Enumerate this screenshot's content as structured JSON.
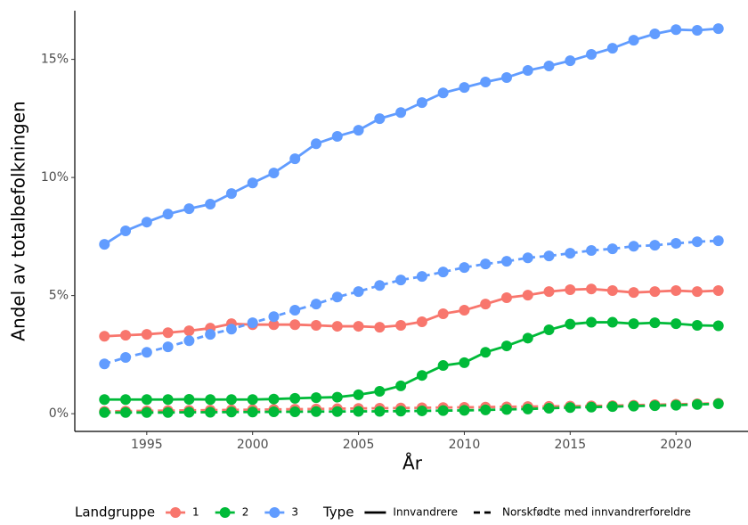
{
  "chart_data": {
    "type": "line",
    "x_label": "År",
    "y_label": "Andel av totalbefolkningen",
    "x": [
      1993,
      1994,
      1995,
      1996,
      1997,
      1998,
      1999,
      2000,
      2001,
      2002,
      2003,
      2004,
      2005,
      2006,
      2007,
      2008,
      2009,
      2010,
      2011,
      2012,
      2013,
      2014,
      2015,
      2016,
      2017,
      2018,
      2019,
      2020,
      2021,
      2022
    ],
    "series": [
      {
        "color": "#F8766D",
        "dash": "solid",
        "values": [
          3.28,
          3.32,
          3.36,
          3.43,
          3.51,
          3.62,
          3.81,
          3.77,
          3.77,
          3.77,
          3.74,
          3.7,
          3.7,
          3.66,
          3.74,
          3.89,
          4.23,
          4.38,
          4.64,
          4.91,
          5.02,
          5.17,
          5.25,
          5.28,
          5.21,
          5.13,
          5.17,
          5.21,
          5.17,
          5.21
        ]
      },
      {
        "color": "#F8766D",
        "dash": "dashed",
        "values": [
          0.1,
          0.11,
          0.12,
          0.13,
          0.14,
          0.15,
          0.16,
          0.17,
          0.18,
          0.19,
          0.2,
          0.21,
          0.22,
          0.23,
          0.24,
          0.25,
          0.26,
          0.27,
          0.28,
          0.29,
          0.3,
          0.31,
          0.32,
          0.33,
          0.34,
          0.36,
          0.38,
          0.4,
          0.42,
          0.44
        ]
      },
      {
        "color": "#00BA38",
        "dash": "solid",
        "values": [
          0.6,
          0.6,
          0.6,
          0.6,
          0.61,
          0.6,
          0.6,
          0.6,
          0.62,
          0.65,
          0.68,
          0.7,
          0.8,
          0.95,
          1.18,
          1.62,
          2.04,
          2.16,
          2.6,
          2.87,
          3.2,
          3.55,
          3.79,
          3.87,
          3.87,
          3.81,
          3.85,
          3.81,
          3.74,
          3.72
        ]
      },
      {
        "color": "#00BA38",
        "dash": "dashed",
        "values": [
          0.05,
          0.05,
          0.05,
          0.05,
          0.06,
          0.06,
          0.07,
          0.07,
          0.08,
          0.08,
          0.09,
          0.09,
          0.1,
          0.1,
          0.11,
          0.12,
          0.13,
          0.14,
          0.16,
          0.18,
          0.2,
          0.23,
          0.26,
          0.28,
          0.3,
          0.32,
          0.34,
          0.36,
          0.39,
          0.42
        ]
      },
      {
        "color": "#619CFF",
        "dash": "solid",
        "values": [
          7.17,
          7.74,
          8.11,
          8.45,
          8.68,
          8.87,
          9.32,
          9.77,
          10.19,
          10.79,
          11.43,
          11.74,
          12.0,
          12.49,
          12.75,
          13.17,
          13.58,
          13.81,
          14.04,
          14.23,
          14.53,
          14.72,
          14.94,
          15.21,
          15.47,
          15.81,
          16.08,
          16.26,
          16.23,
          16.3
        ]
      },
      {
        "color": "#619CFF",
        "dash": "dashed",
        "values": [
          2.11,
          2.38,
          2.6,
          2.83,
          3.09,
          3.36,
          3.58,
          3.85,
          4.11,
          4.38,
          4.64,
          4.94,
          5.17,
          5.43,
          5.66,
          5.81,
          6.0,
          6.19,
          6.34,
          6.45,
          6.6,
          6.68,
          6.79,
          6.91,
          6.98,
          7.09,
          7.13,
          7.21,
          7.28,
          7.32
        ]
      }
    ],
    "xlim": [
      1991.6,
      2023.4
    ],
    "ylim": [
      -0.75,
      17.06
    ],
    "xticks": [
      1995,
      2000,
      2005,
      2010,
      2015,
      2020
    ],
    "yticks": [
      {
        "value": 0,
        "label": "0%"
      },
      {
        "value": 5,
        "label": "5%"
      },
      {
        "value": 10,
        "label": "10%"
      },
      {
        "value": 15,
        "label": "15%"
      }
    ],
    "legend": {
      "color_title": "Landgruppe",
      "color_items": [
        {
          "label": "1",
          "color": "#F8766D"
        },
        {
          "label": "2",
          "color": "#00BA38"
        },
        {
          "label": "3",
          "color": "#619CFF"
        }
      ],
      "type_title": "Type",
      "type_items": [
        {
          "label": "Innvandrere",
          "dash": "solid"
        },
        {
          "label": "Norskfødte med innvandrerforeldre",
          "dash": "dashed"
        }
      ]
    }
  }
}
